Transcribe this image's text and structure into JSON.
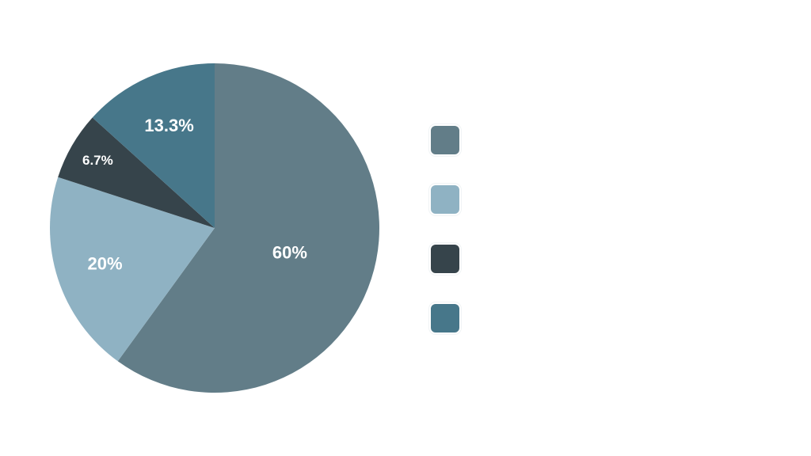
{
  "chart_data": {
    "type": "pie",
    "slices": [
      {
        "value": 60,
        "label": "60%",
        "color": "#627d88"
      },
      {
        "value": 20,
        "label": "20%",
        "color": "#8fb2c3"
      },
      {
        "value": 6.7,
        "label": "6.7%",
        "color": "#36444b"
      },
      {
        "value": 13.3,
        "label": "13.3%",
        "color": "#47778a"
      }
    ],
    "start": "top",
    "direction": "clockwise",
    "legend_position": "right",
    "legend_labels_visible": false
  }
}
